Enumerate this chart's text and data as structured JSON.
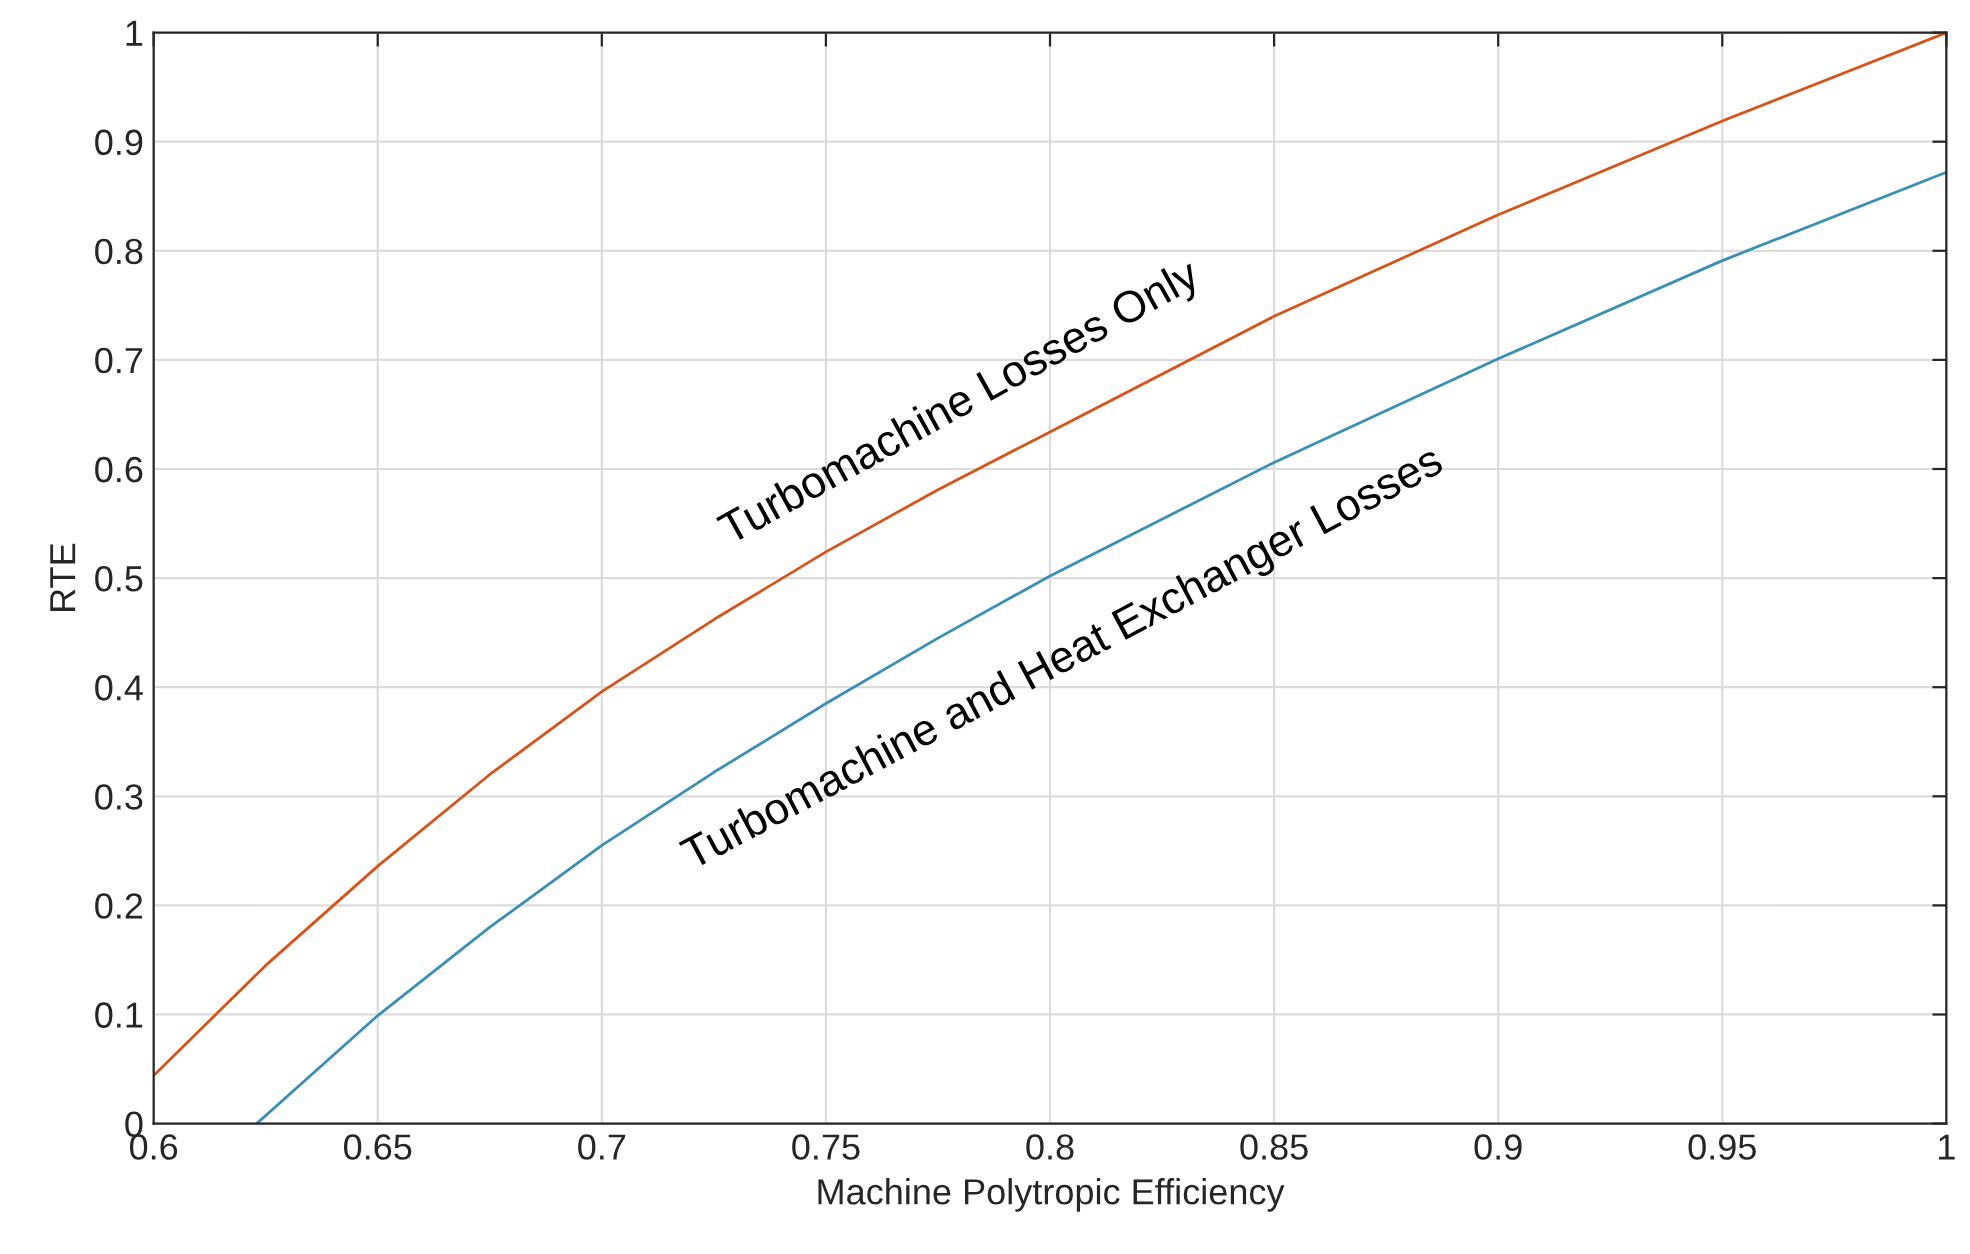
{
  "chart_data": {
    "type": "line",
    "xlabel": "Machine Polytropic Efficiency",
    "ylabel": "RTE",
    "xlim": [
      0.6,
      1
    ],
    "ylim": [
      0,
      1
    ],
    "xticks": [
      0.6,
      0.65,
      0.7,
      0.75,
      0.8,
      0.85,
      0.9,
      0.95,
      1
    ],
    "yticks": [
      0,
      0.1,
      0.2,
      0.3,
      0.4,
      0.5,
      0.6,
      0.7,
      0.8,
      0.9,
      1
    ],
    "grid": true,
    "series": [
      {
        "color": "#d95319",
        "x": [
          0.6,
          0.625,
          0.65,
          0.675,
          0.7,
          0.725,
          0.75,
          0.775,
          0.8,
          0.85,
          0.9,
          0.95,
          1
        ],
        "values": [
          0.044,
          0.145,
          0.236,
          0.32,
          0.396,
          0.462,
          0.524,
          0.581,
          0.634,
          0.74,
          0.833,
          0.919,
          1.0
        ]
      },
      {
        "color": "#3a8fb7",
        "x": [
          0.623,
          0.65,
          0.675,
          0.7,
          0.725,
          0.75,
          0.775,
          0.8,
          0.85,
          0.9,
          0.95,
          1
        ],
        "values": [
          0,
          0.099,
          0.18,
          0.255,
          0.322,
          0.385,
          0.445,
          0.502,
          0.606,
          0.701,
          0.791,
          0.872
        ]
      }
    ],
    "annotations": [
      "Turbomachine Losses Only",
      "Turbomachine and Heat Exchanger Losses"
    ]
  }
}
